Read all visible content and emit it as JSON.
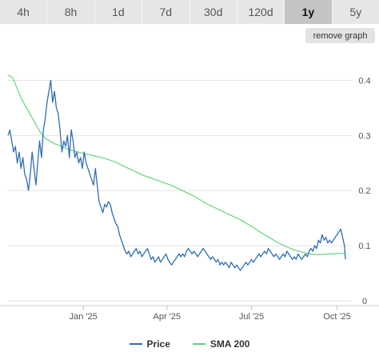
{
  "tabs": [
    {
      "label": "4h",
      "active": false
    },
    {
      "label": "8h",
      "active": false
    },
    {
      "label": "1d",
      "active": false
    },
    {
      "label": "7d",
      "active": false
    },
    {
      "label": "30d",
      "active": false
    },
    {
      "label": "120d",
      "active": false
    },
    {
      "label": "1y",
      "active": true
    },
    {
      "label": "5y",
      "active": false
    }
  ],
  "remove_graph_label": "remove graph",
  "colors": {
    "price": "#2f6fb0",
    "sma": "#62d67d",
    "grid": "#e4e4e4",
    "active_tab": "#c4c4c4"
  },
  "chart_data": {
    "type": "line",
    "x_range": [
      "2024-10-12",
      "2025-10-10"
    ],
    "ylim": [
      0,
      0.45
    ],
    "y_ticks": [
      {
        "value": 0,
        "label": "0"
      },
      {
        "value": 0.1,
        "label": "0.1"
      },
      {
        "value": 0.2,
        "label": "0.2"
      },
      {
        "value": 0.3,
        "label": "0.3"
      },
      {
        "value": 0.4,
        "label": "0.4"
      }
    ],
    "x_ticks": [
      {
        "date": "2025-01-01",
        "label": "Jan '25"
      },
      {
        "date": "2025-04-01",
        "label": "Apr '25"
      },
      {
        "date": "2025-07-01",
        "label": "Jul '25"
      },
      {
        "date": "2025-10-01",
        "label": "Oct '25"
      }
    ],
    "grid": true,
    "legend_position": "bottom",
    "series": [
      {
        "name": "Price",
        "color": "#2f6fb0",
        "points": [
          [
            "2024-10-12",
            0.3
          ],
          [
            "2024-10-14",
            0.31
          ],
          [
            "2024-10-16",
            0.29
          ],
          [
            "2024-10-18",
            0.27
          ],
          [
            "2024-10-20",
            0.28
          ],
          [
            "2024-10-22",
            0.25
          ],
          [
            "2024-10-24",
            0.27
          ],
          [
            "2024-10-26",
            0.24
          ],
          [
            "2024-10-28",
            0.26
          ],
          [
            "2024-10-30",
            0.23
          ],
          [
            "2024-11-01",
            0.22
          ],
          [
            "2024-11-03",
            0.2
          ],
          [
            "2024-11-05",
            0.23
          ],
          [
            "2024-11-07",
            0.27
          ],
          [
            "2024-11-09",
            0.24
          ],
          [
            "2024-11-11",
            0.21
          ],
          [
            "2024-11-13",
            0.25
          ],
          [
            "2024-11-15",
            0.29
          ],
          [
            "2024-11-17",
            0.26
          ],
          [
            "2024-11-19",
            0.31
          ],
          [
            "2024-11-21",
            0.33
          ],
          [
            "2024-11-23",
            0.36
          ],
          [
            "2024-11-25",
            0.38
          ],
          [
            "2024-11-27",
            0.4
          ],
          [
            "2024-11-29",
            0.36
          ],
          [
            "2024-12-01",
            0.38
          ],
          [
            "2024-12-03",
            0.35
          ],
          [
            "2024-12-05",
            0.34
          ],
          [
            "2024-12-07",
            0.31
          ],
          [
            "2024-12-09",
            0.27
          ],
          [
            "2024-12-11",
            0.29
          ],
          [
            "2024-12-13",
            0.28
          ],
          [
            "2024-12-15",
            0.3
          ],
          [
            "2024-12-17",
            0.26
          ],
          [
            "2024-12-19",
            0.31
          ],
          [
            "2024-12-21",
            0.29
          ],
          [
            "2024-12-23",
            0.26
          ],
          [
            "2024-12-25",
            0.27
          ],
          [
            "2024-12-27",
            0.25
          ],
          [
            "2024-12-29",
            0.26
          ],
          [
            "2024-12-31",
            0.24
          ],
          [
            "2025-01-02",
            0.27
          ],
          [
            "2025-01-04",
            0.25
          ],
          [
            "2025-01-06",
            0.24
          ],
          [
            "2025-01-08",
            0.23
          ],
          [
            "2025-01-10",
            0.22
          ],
          [
            "2025-01-12",
            0.21
          ],
          [
            "2025-01-14",
            0.24
          ],
          [
            "2025-01-16",
            0.21
          ],
          [
            "2025-01-18",
            0.18
          ],
          [
            "2025-01-20",
            0.17
          ],
          [
            "2025-01-22",
            0.16
          ],
          [
            "2025-01-24",
            0.175
          ],
          [
            "2025-01-26",
            0.17
          ],
          [
            "2025-01-28",
            0.18
          ],
          [
            "2025-01-30",
            0.175
          ],
          [
            "2025-02-01",
            0.16
          ],
          [
            "2025-02-03",
            0.15
          ],
          [
            "2025-02-05",
            0.14
          ],
          [
            "2025-02-07",
            0.135
          ],
          [
            "2025-02-09",
            0.12
          ],
          [
            "2025-02-11",
            0.11
          ],
          [
            "2025-02-13",
            0.1
          ],
          [
            "2025-02-15",
            0.09
          ],
          [
            "2025-02-17",
            0.085
          ],
          [
            "2025-02-19",
            0.09
          ],
          [
            "2025-02-21",
            0.08
          ],
          [
            "2025-02-23",
            0.085
          ],
          [
            "2025-02-25",
            0.09
          ],
          [
            "2025-02-27",
            0.095
          ],
          [
            "2025-03-01",
            0.085
          ],
          [
            "2025-03-03",
            0.09
          ],
          [
            "2025-03-05",
            0.08
          ],
          [
            "2025-03-07",
            0.085
          ],
          [
            "2025-03-09",
            0.09
          ],
          [
            "2025-03-11",
            0.095
          ],
          [
            "2025-03-13",
            0.085
          ],
          [
            "2025-03-15",
            0.075
          ],
          [
            "2025-03-17",
            0.08
          ],
          [
            "2025-03-19",
            0.07
          ],
          [
            "2025-03-21",
            0.075
          ],
          [
            "2025-03-23",
            0.08
          ],
          [
            "2025-03-25",
            0.07
          ],
          [
            "2025-03-27",
            0.075
          ],
          [
            "2025-03-29",
            0.08
          ],
          [
            "2025-03-31",
            0.085
          ],
          [
            "2025-04-02",
            0.075
          ],
          [
            "2025-04-04",
            0.07
          ],
          [
            "2025-04-06",
            0.065
          ],
          [
            "2025-04-08",
            0.07
          ],
          [
            "2025-04-10",
            0.075
          ],
          [
            "2025-04-12",
            0.08
          ],
          [
            "2025-04-14",
            0.085
          ],
          [
            "2025-04-16",
            0.08
          ],
          [
            "2025-04-18",
            0.085
          ],
          [
            "2025-04-20",
            0.08
          ],
          [
            "2025-04-22",
            0.09
          ],
          [
            "2025-04-24",
            0.095
          ],
          [
            "2025-04-26",
            0.09
          ],
          [
            "2025-04-28",
            0.085
          ],
          [
            "2025-04-30",
            0.09
          ],
          [
            "2025-05-02",
            0.085
          ],
          [
            "2025-05-04",
            0.08
          ],
          [
            "2025-05-06",
            0.085
          ],
          [
            "2025-05-08",
            0.09
          ],
          [
            "2025-05-10",
            0.095
          ],
          [
            "2025-05-12",
            0.09
          ],
          [
            "2025-05-14",
            0.085
          ],
          [
            "2025-05-16",
            0.08
          ],
          [
            "2025-05-18",
            0.075
          ],
          [
            "2025-05-20",
            0.08
          ],
          [
            "2025-05-22",
            0.075
          ],
          [
            "2025-05-24",
            0.07
          ],
          [
            "2025-05-26",
            0.075
          ],
          [
            "2025-05-28",
            0.065
          ],
          [
            "2025-05-30",
            0.07
          ],
          [
            "2025-06-01",
            0.065
          ],
          [
            "2025-06-03",
            0.07
          ],
          [
            "2025-06-05",
            0.065
          ],
          [
            "2025-06-07",
            0.06
          ],
          [
            "2025-06-09",
            0.07
          ],
          [
            "2025-06-11",
            0.065
          ],
          [
            "2025-06-13",
            0.06
          ],
          [
            "2025-06-15",
            0.065
          ],
          [
            "2025-06-17",
            0.06
          ],
          [
            "2025-06-19",
            0.055
          ],
          [
            "2025-06-21",
            0.06
          ],
          [
            "2025-06-23",
            0.065
          ],
          [
            "2025-06-25",
            0.07
          ],
          [
            "2025-06-27",
            0.065
          ],
          [
            "2025-06-29",
            0.07
          ],
          [
            "2025-07-01",
            0.075
          ],
          [
            "2025-07-03",
            0.07
          ],
          [
            "2025-07-05",
            0.075
          ],
          [
            "2025-07-07",
            0.08
          ],
          [
            "2025-07-09",
            0.085
          ],
          [
            "2025-07-11",
            0.08
          ],
          [
            "2025-07-13",
            0.085
          ],
          [
            "2025-07-15",
            0.09
          ],
          [
            "2025-07-17",
            0.085
          ],
          [
            "2025-07-19",
            0.095
          ],
          [
            "2025-07-21",
            0.09
          ],
          [
            "2025-07-23",
            0.085
          ],
          [
            "2025-07-25",
            0.08
          ],
          [
            "2025-07-27",
            0.085
          ],
          [
            "2025-07-29",
            0.08
          ],
          [
            "2025-07-31",
            0.075
          ],
          [
            "2025-08-02",
            0.08
          ],
          [
            "2025-08-04",
            0.085
          ],
          [
            "2025-08-06",
            0.08
          ],
          [
            "2025-08-08",
            0.09
          ],
          [
            "2025-08-10",
            0.085
          ],
          [
            "2025-08-12",
            0.08
          ],
          [
            "2025-08-14",
            0.075
          ],
          [
            "2025-08-16",
            0.08
          ],
          [
            "2025-08-18",
            0.075
          ],
          [
            "2025-08-20",
            0.085
          ],
          [
            "2025-08-22",
            0.08
          ],
          [
            "2025-08-24",
            0.075
          ],
          [
            "2025-08-26",
            0.08
          ],
          [
            "2025-08-28",
            0.085
          ],
          [
            "2025-08-30",
            0.08
          ],
          [
            "2025-09-01",
            0.09
          ],
          [
            "2025-09-03",
            0.095
          ],
          [
            "2025-09-05",
            0.09
          ],
          [
            "2025-09-07",
            0.1
          ],
          [
            "2025-09-09",
            0.095
          ],
          [
            "2025-09-11",
            0.11
          ],
          [
            "2025-09-13",
            0.105
          ],
          [
            "2025-09-15",
            0.12
          ],
          [
            "2025-09-17",
            0.11
          ],
          [
            "2025-09-19",
            0.115
          ],
          [
            "2025-09-21",
            0.105
          ],
          [
            "2025-09-23",
            0.11
          ],
          [
            "2025-09-25",
            0.105
          ],
          [
            "2025-09-27",
            0.11
          ],
          [
            "2025-09-29",
            0.115
          ],
          [
            "2025-10-01",
            0.12
          ],
          [
            "2025-10-03",
            0.125
          ],
          [
            "2025-10-05",
            0.13
          ],
          [
            "2025-10-07",
            0.115
          ],
          [
            "2025-10-09",
            0.1
          ],
          [
            "2025-10-10",
            0.075
          ]
        ]
      },
      {
        "name": "SMA 200",
        "color": "#62d67d",
        "points": [
          [
            "2024-10-12",
            0.41
          ],
          [
            "2024-10-17",
            0.405
          ],
          [
            "2024-10-22",
            0.385
          ],
          [
            "2024-10-27",
            0.365
          ],
          [
            "2024-11-01",
            0.35
          ],
          [
            "2024-11-06",
            0.335
          ],
          [
            "2024-11-11",
            0.32
          ],
          [
            "2024-11-16",
            0.305
          ],
          [
            "2024-11-21",
            0.295
          ],
          [
            "2024-11-26",
            0.29
          ],
          [
            "2024-12-01",
            0.285
          ],
          [
            "2024-12-06",
            0.282
          ],
          [
            "2024-12-11",
            0.278
          ],
          [
            "2024-12-16",
            0.275
          ],
          [
            "2024-12-21",
            0.272
          ],
          [
            "2024-12-26",
            0.27
          ],
          [
            "2024-12-31",
            0.268
          ],
          [
            "2025-01-05",
            0.266
          ],
          [
            "2025-01-10",
            0.264
          ],
          [
            "2025-01-15",
            0.262
          ],
          [
            "2025-01-20",
            0.26
          ],
          [
            "2025-01-25",
            0.258
          ],
          [
            "2025-01-30",
            0.255
          ],
          [
            "2025-02-04",
            0.252
          ],
          [
            "2025-02-09",
            0.248
          ],
          [
            "2025-02-14",
            0.244
          ],
          [
            "2025-02-19",
            0.24
          ],
          [
            "2025-02-24",
            0.236
          ],
          [
            "2025-03-01",
            0.232
          ],
          [
            "2025-03-06",
            0.228
          ],
          [
            "2025-03-11",
            0.225
          ],
          [
            "2025-03-16",
            0.222
          ],
          [
            "2025-03-21",
            0.219
          ],
          [
            "2025-03-26",
            0.216
          ],
          [
            "2025-03-31",
            0.213
          ],
          [
            "2025-04-05",
            0.21
          ],
          [
            "2025-04-10",
            0.206
          ],
          [
            "2025-04-15",
            0.202
          ],
          [
            "2025-04-20",
            0.198
          ],
          [
            "2025-04-25",
            0.194
          ],
          [
            "2025-04-30",
            0.19
          ],
          [
            "2025-05-05",
            0.185
          ],
          [
            "2025-05-10",
            0.18
          ],
          [
            "2025-05-15",
            0.175
          ],
          [
            "2025-05-20",
            0.171
          ],
          [
            "2025-05-25",
            0.167
          ],
          [
            "2025-05-30",
            0.163
          ],
          [
            "2025-06-04",
            0.159
          ],
          [
            "2025-06-09",
            0.155
          ],
          [
            "2025-06-14",
            0.151
          ],
          [
            "2025-06-19",
            0.147
          ],
          [
            "2025-06-24",
            0.142
          ],
          [
            "2025-06-29",
            0.137
          ],
          [
            "2025-07-04",
            0.132
          ],
          [
            "2025-07-09",
            0.126
          ],
          [
            "2025-07-14",
            0.121
          ],
          [
            "2025-07-19",
            0.116
          ],
          [
            "2025-07-24",
            0.111
          ],
          [
            "2025-07-29",
            0.106
          ],
          [
            "2025-08-03",
            0.102
          ],
          [
            "2025-08-08",
            0.098
          ],
          [
            "2025-08-13",
            0.094
          ],
          [
            "2025-08-18",
            0.091
          ],
          [
            "2025-08-23",
            0.089
          ],
          [
            "2025-08-28",
            0.087
          ],
          [
            "2025-09-02",
            0.085
          ],
          [
            "2025-09-07",
            0.084
          ],
          [
            "2025-09-12",
            0.084
          ],
          [
            "2025-09-17",
            0.084
          ],
          [
            "2025-09-22",
            0.085
          ],
          [
            "2025-09-27",
            0.085
          ],
          [
            "2025-10-02",
            0.086
          ],
          [
            "2025-10-07",
            0.086
          ],
          [
            "2025-10-10",
            0.086
          ]
        ]
      }
    ]
  }
}
